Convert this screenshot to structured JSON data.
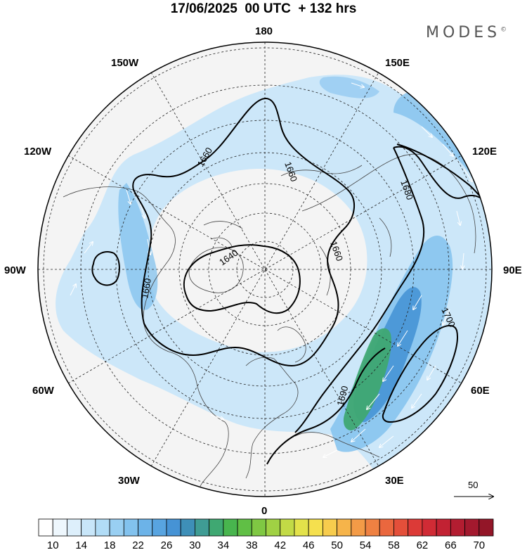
{
  "title": "17/06/2025  00 UTC  + 132 hrs",
  "brand": "MODES",
  "brand_mark": "©",
  "longitude_labels": [
    {
      "text": "180",
      "lon": 180
    },
    {
      "text": "150E",
      "lon": 150
    },
    {
      "text": "120E",
      "lon": 120
    },
    {
      "text": "90E",
      "lon": 90
    },
    {
      "text": "60E",
      "lon": 60
    },
    {
      "text": "30E",
      "lon": 30
    },
    {
      "text": "0",
      "lon": 0
    },
    {
      "text": "30W",
      "lon": -30
    },
    {
      "text": "60W",
      "lon": -60
    },
    {
      "text": "90W",
      "lon": -90
    },
    {
      "text": "120W",
      "lon": -120
    },
    {
      "text": "150W",
      "lon": -150
    }
  ],
  "contour_labels": [
    "1640",
    "1660",
    "1660",
    "1660",
    "1660",
    "1680",
    "1690",
    "1700"
  ],
  "vector_scale": "50",
  "colorbar": {
    "labels": [
      "10",
      "14",
      "18",
      "22",
      "26",
      "30",
      "34",
      "38",
      "42",
      "46",
      "50",
      "54",
      "58",
      "62",
      "66",
      "70"
    ],
    "colors": [
      "#ffffff",
      "#eef7fd",
      "#ddeffb",
      "#c8e6f9",
      "#b1dcf6",
      "#99cff2",
      "#82c2ee",
      "#6cb3e8",
      "#58a4e0",
      "#4693d5",
      "#3e8fb8",
      "#3f9c94",
      "#3fa872",
      "#48b54e",
      "#60bf45",
      "#7fc843",
      "#a0d144",
      "#c2da46",
      "#e3e24a",
      "#f5e04e",
      "#f7cc4d",
      "#f6b44a",
      "#f39b47",
      "#ef8142",
      "#ea673e",
      "#e44f3a",
      "#dc3a37",
      "#d02b35",
      "#c22233",
      "#b31d31",
      "#a3192e",
      "#931628"
    ]
  },
  "colors": {
    "ocean_fill": "#f4f4f4",
    "jet_light": "#c8e6f9",
    "jet_mid": "#82c2ee",
    "jet_strong": "#4693d5",
    "jet_core": "#3fa872"
  }
}
